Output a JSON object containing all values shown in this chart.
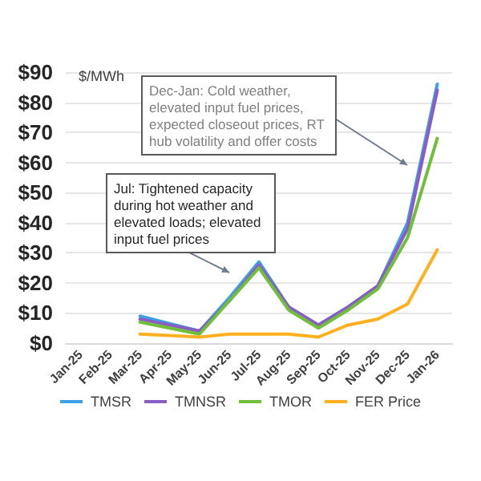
{
  "chart_data": {
    "type": "line",
    "ylabel": "$/MWh",
    "categories": [
      "Jan-25",
      "Feb-25",
      "Mar-25",
      "Apr-25",
      "May-25",
      "Jun-25",
      "Jul-25",
      "Aug-25",
      "Sep-25",
      "Oct-25",
      "Nov-25",
      "Dec-25",
      "Jan-26"
    ],
    "series": [
      {
        "name": "TMSR",
        "color": "#3fa0e8",
        "values": [
          null,
          null,
          9,
          6.5,
          4,
          15,
          27,
          12,
          6,
          12,
          19,
          40,
          86
        ]
      },
      {
        "name": "TMNSR",
        "color": "#8a5cc4",
        "values": [
          null,
          null,
          8,
          6,
          4,
          14,
          26,
          12,
          6,
          12,
          19,
          38,
          84
        ]
      },
      {
        "name": "TMOR",
        "color": "#6fbf3a",
        "values": [
          null,
          null,
          7,
          5,
          3,
          14,
          25,
          11,
          5,
          11,
          18,
          35,
          68
        ]
      },
      {
        "name": "FER Price",
        "color": "#ffb020",
        "values": [
          null,
          null,
          3,
          2.5,
          2,
          3,
          3,
          3,
          2,
          6,
          8,
          13,
          31
        ]
      }
    ],
    "ylim": [
      0,
      90
    ],
    "yticks": [
      {
        "value": 0,
        "label": "$0"
      },
      {
        "value": 10,
        "label": "$10"
      },
      {
        "value": 20,
        "label": "$20"
      },
      {
        "value": 30,
        "label": "$30"
      },
      {
        "value": 40,
        "label": "$40"
      },
      {
        "value": 50,
        "label": "$50"
      },
      {
        "value": 60,
        "label": "$60"
      },
      {
        "value": 70,
        "label": "$70"
      },
      {
        "value": 80,
        "label": "$80"
      },
      {
        "value": 90,
        "label": "$90"
      }
    ],
    "grid": "y",
    "legend": "bottom",
    "marker": "none",
    "line_style": "solid",
    "annotations": [
      "Dec-Jan: Cold weather, elevated input fuel prices, expected closeout prices, RT hub volatility and offer costs",
      "Jul: Tightened capacity during hot weather and elevated loads; elevated input fuel prices"
    ]
  }
}
